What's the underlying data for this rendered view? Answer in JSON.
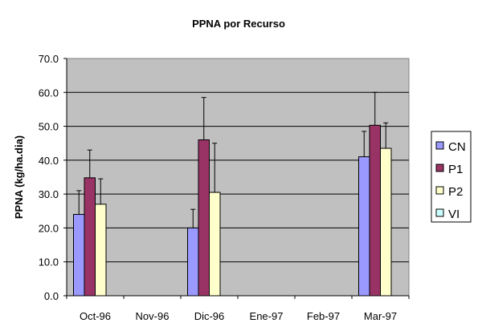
{
  "colors": {
    "plot_background": "#c0c0c0",
    "CN": "#9999ff",
    "P1": "#993366",
    "P2": "#ffffcc",
    "VI": "#ccffff"
  },
  "chart_data": {
    "type": "bar",
    "title": "PPNA por Recurso",
    "xlabel": "",
    "ylabel": "PPNA (kg/ha.dia)",
    "ylim": [
      0,
      70
    ],
    "yticks": [
      "0.0",
      "10.0",
      "20.0",
      "30.0",
      "40.0",
      "50.0",
      "60.0",
      "70.0"
    ],
    "grid": "horizontal",
    "legend_position": "right",
    "categories": [
      "Oct-96",
      "Nov-96",
      "Dic-96",
      "Ene-97",
      "Feb-97",
      "Mar-97"
    ],
    "series": [
      {
        "name": "CN",
        "values": [
          24.0,
          null,
          20.0,
          null,
          null,
          41.0
        ],
        "error_upper": [
          31.0,
          null,
          25.5,
          null,
          null,
          48.5
        ]
      },
      {
        "name": "P1",
        "values": [
          34.8,
          null,
          46.0,
          null,
          null,
          50.3
        ],
        "error_upper": [
          43.0,
          null,
          58.5,
          null,
          null,
          60.0
        ]
      },
      {
        "name": "P2",
        "values": [
          27.0,
          null,
          30.5,
          null,
          null,
          43.5
        ],
        "error_upper": [
          34.5,
          null,
          45.0,
          null,
          null,
          51.0
        ]
      },
      {
        "name": "VI",
        "values": [
          null,
          null,
          null,
          null,
          null,
          null
        ],
        "error_upper": [
          null,
          null,
          null,
          null,
          null,
          null
        ]
      }
    ]
  }
}
